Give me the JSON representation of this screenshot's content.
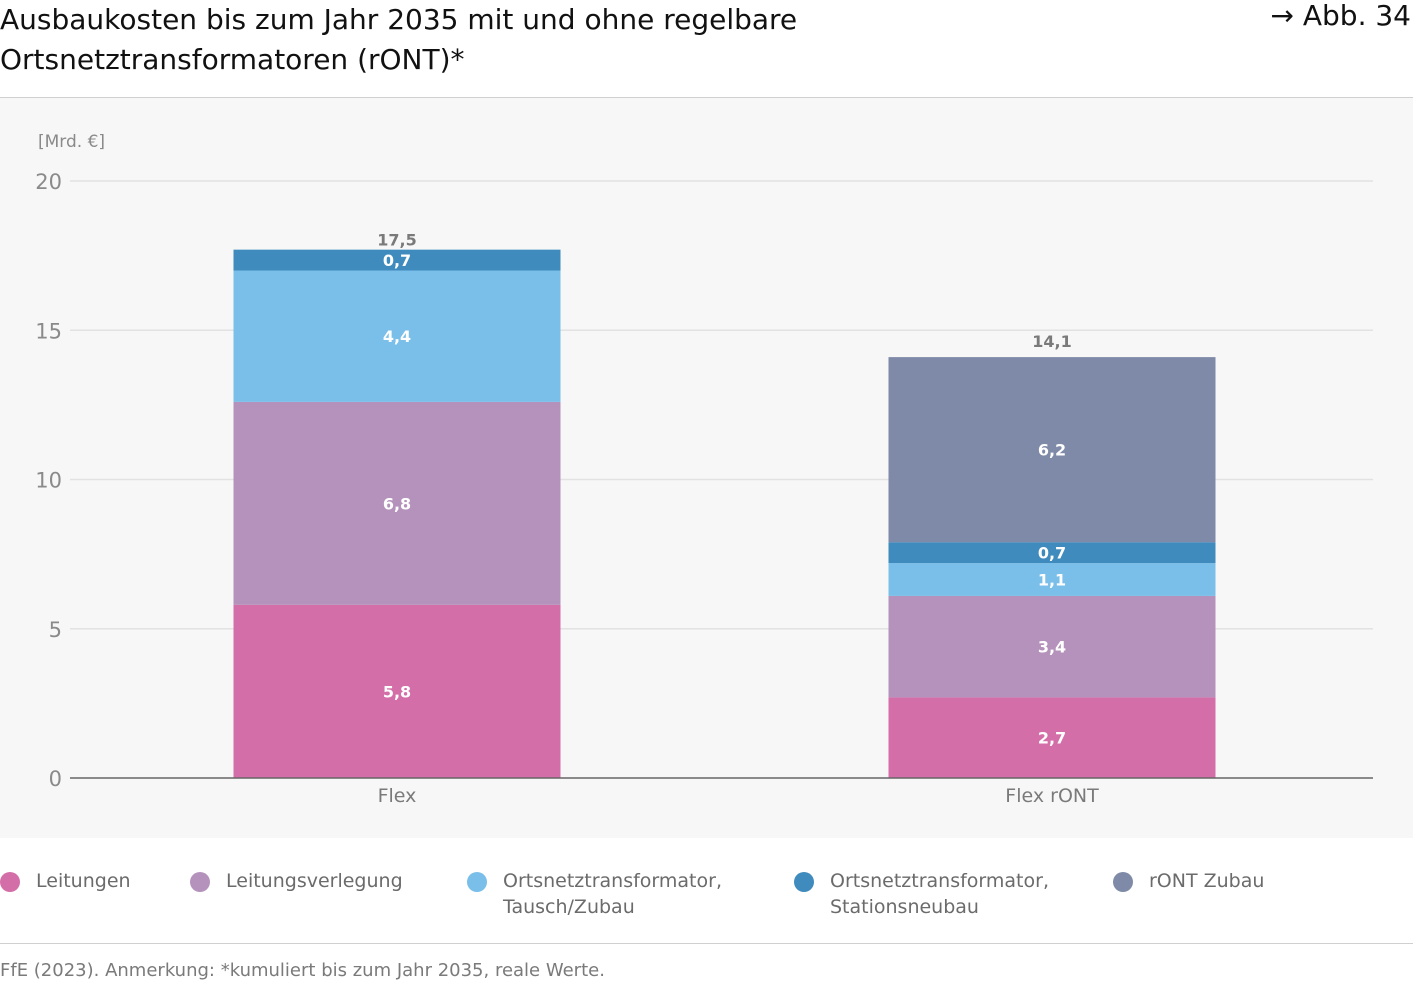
{
  "header": {
    "title": "Ausbaukosten bis zum Jahr 2035 mit und ohne regelbare Ortsnetztransformatoren (rONT)*",
    "figure_ref": "→ Abb. 34"
  },
  "footer": {
    "source": "FfE (2023). Anmerkung: *kumuliert bis zum Jahr 2035, reale Werte."
  },
  "chart_data": {
    "type": "bar",
    "stacked": true,
    "title": "Ausbaukosten bis zum Jahr 2035 mit und ohne regelbare Ortsnetztransformatoren (rONT)*",
    "unit_label": "[Mrd. €]",
    "xlabel": "",
    "ylabel": "",
    "ylim": [
      0,
      20
    ],
    "yticks": [
      "0",
      "5",
      "10",
      "15",
      "20"
    ],
    "grid": true,
    "legend_position": "bottom",
    "categories": [
      "Flex",
      "Flex rONT"
    ],
    "totals": [
      17.5,
      14.1
    ],
    "total_labels": [
      "17,5",
      "14,1"
    ],
    "series": [
      {
        "name": "Leitungen",
        "color": "#d46ea8",
        "values": [
          5.8,
          2.7
        ],
        "labels": [
          "5,8",
          "2,7"
        ]
      },
      {
        "name": "Leitungsverlegung",
        "color": "#b592bb",
        "values": [
          6.8,
          3.4
        ],
        "labels": [
          "6,8",
          "3,4"
        ]
      },
      {
        "name": "Ortsnetztransformator,\nTausch/Zubau",
        "color": "#79bfe9",
        "values": [
          4.4,
          1.1
        ],
        "labels": [
          "4,4",
          "1,1"
        ]
      },
      {
        "name": "Ortsnetztransformator,\nStationsneubau",
        "color": "#3f8bbd",
        "values": [
          0.7,
          0.7
        ],
        "labels": [
          "0,7",
          "0,7"
        ]
      },
      {
        "name": "rONT Zubau",
        "color": "#7e8aa8",
        "values": [
          0,
          6.2
        ],
        "labels": [
          "",
          "6,2"
        ]
      }
    ]
  }
}
